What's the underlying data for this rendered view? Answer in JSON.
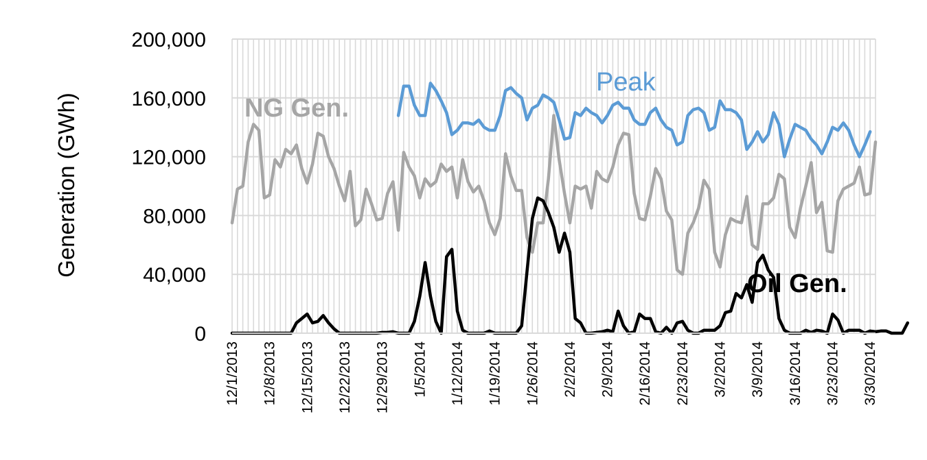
{
  "chart_data": {
    "type": "line",
    "ylabel": "Generation (GWh)",
    "ylim": [
      0,
      200000
    ],
    "yticks": [
      0,
      40000,
      80000,
      120000,
      160000,
      200000
    ],
    "ytick_labels": [
      "0",
      "40,000",
      "80,000",
      "120,000",
      "160,000",
      "200,000"
    ],
    "xticks": [
      "12/1/2013",
      "12/8/2013",
      "12/15/2013",
      "12/22/2013",
      "12/29/2013",
      "1/5/2014",
      "1/12/2014",
      "1/19/2014",
      "1/26/2014",
      "2/2/2014",
      "2/9/2014",
      "2/16/2014",
      "2/23/2014",
      "3/2/2014",
      "3/9/2014",
      "3/16/2014",
      "3/23/2014",
      "3/30/2014"
    ],
    "x_start": "12/1/2013",
    "x_end": "3/31/2014",
    "grid": true,
    "legend": "none",
    "series": [
      {
        "name": "Peak",
        "color": "#5B9BD5",
        "label_color": "#5B9BD5",
        "start": "1/1/2014",
        "values": [
          148000,
          168000,
          168000,
          155000,
          148000,
          148000,
          170000,
          165000,
          158000,
          150000,
          135000,
          138000,
          143000,
          143000,
          142000,
          145000,
          140000,
          138000,
          138000,
          148000,
          165000,
          167000,
          163000,
          160000,
          145000,
          153000,
          155000,
          162000,
          160000,
          157000,
          145000,
          132000,
          133000,
          150000,
          148000,
          153000,
          150000,
          148000,
          143000,
          148000,
          155000,
          157000,
          153000,
          153000,
          145000,
          142000,
          142000,
          150000,
          153000,
          145000,
          140000,
          138000,
          128000,
          130000,
          148000,
          152000,
          153000,
          150000,
          138000,
          140000,
          158000,
          152000,
          152000,
          150000,
          145000,
          125000,
          130000,
          137000,
          130000,
          135000,
          150000,
          142000,
          120000,
          132000,
          142000,
          140000,
          138000,
          132000,
          128000,
          122000,
          130000,
          140000,
          138000,
          143000,
          138000,
          128000,
          120000,
          128000,
          137000
        ]
      },
      {
        "name": "NG Gen.",
        "color": "#A6A6A6",
        "label_color": "#A6A6A6",
        "start": "12/1/2013",
        "values": [
          75000,
          98000,
          100000,
          130000,
          142000,
          138000,
          92000,
          94000,
          118000,
          113000,
          125000,
          122000,
          128000,
          112000,
          102000,
          115000,
          136000,
          134000,
          120000,
          112000,
          100000,
          90000,
          110000,
          73000,
          77000,
          98000,
          88000,
          77000,
          78000,
          95000,
          103000,
          70000,
          123000,
          113000,
          107000,
          92000,
          105000,
          100000,
          103000,
          115000,
          110000,
          113000,
          92000,
          118000,
          103000,
          96000,
          100000,
          90000,
          75000,
          67000,
          78000,
          122000,
          107000,
          97000,
          97000,
          65000,
          55000,
          75000,
          75000,
          105000,
          148000,
          118000,
          95000,
          75000,
          100000,
          98000,
          100000,
          85000,
          110000,
          105000,
          103000,
          113000,
          128000,
          136000,
          135000,
          95000,
          78000,
          77000,
          93000,
          112000,
          105000,
          83000,
          77000,
          43000,
          40000,
          68000,
          75000,
          85000,
          104000,
          98000,
          55000,
          45000,
          67000,
          78000,
          76000,
          75000,
          93000,
          60000,
          57000,
          88000,
          88000,
          92000,
          108000,
          105000,
          72000,
          65000,
          85000,
          100000,
          116000,
          82000,
          89000,
          56000,
          55000,
          90000,
          98000,
          100000,
          102000,
          113000,
          94000,
          95000,
          130000
        ]
      },
      {
        "name": "Oil Gen.",
        "color": "#000000",
        "label_color": "#000000",
        "start": "12/1/2013",
        "values": [
          0,
          0,
          0,
          0,
          0,
          0,
          0,
          0,
          0,
          0,
          0,
          0,
          7000,
          10000,
          13000,
          7000,
          8000,
          12000,
          7000,
          3000,
          0,
          0,
          0,
          0,
          0,
          0,
          0,
          0,
          500,
          500,
          1000,
          0,
          0,
          0,
          8000,
          25000,
          48000,
          25000,
          8000,
          0,
          52000,
          57000,
          15000,
          2000,
          0,
          0,
          0,
          0,
          1500,
          0,
          0,
          0,
          0,
          0,
          5000,
          42000,
          78000,
          92000,
          90000,
          82000,
          72000,
          55000,
          68000,
          55000,
          10000,
          7000,
          0,
          0,
          500,
          1000,
          2000,
          1000,
          15000,
          5000,
          0,
          1000,
          13000,
          10000,
          10000,
          1000,
          0,
          4000,
          0,
          7000,
          8000,
          2000,
          0,
          0,
          2000,
          2000,
          2000,
          5000,
          14000,
          15000,
          27000,
          24000,
          33000,
          21000,
          48000,
          53000,
          43000,
          38000,
          10000,
          2000,
          0,
          0,
          0,
          2000,
          500,
          2000,
          1500,
          0,
          13000,
          9000,
          0,
          2000,
          2000,
          2000,
          0,
          1500,
          1000,
          1500,
          1500,
          0,
          0,
          0,
          7000
        ]
      }
    ]
  }
}
